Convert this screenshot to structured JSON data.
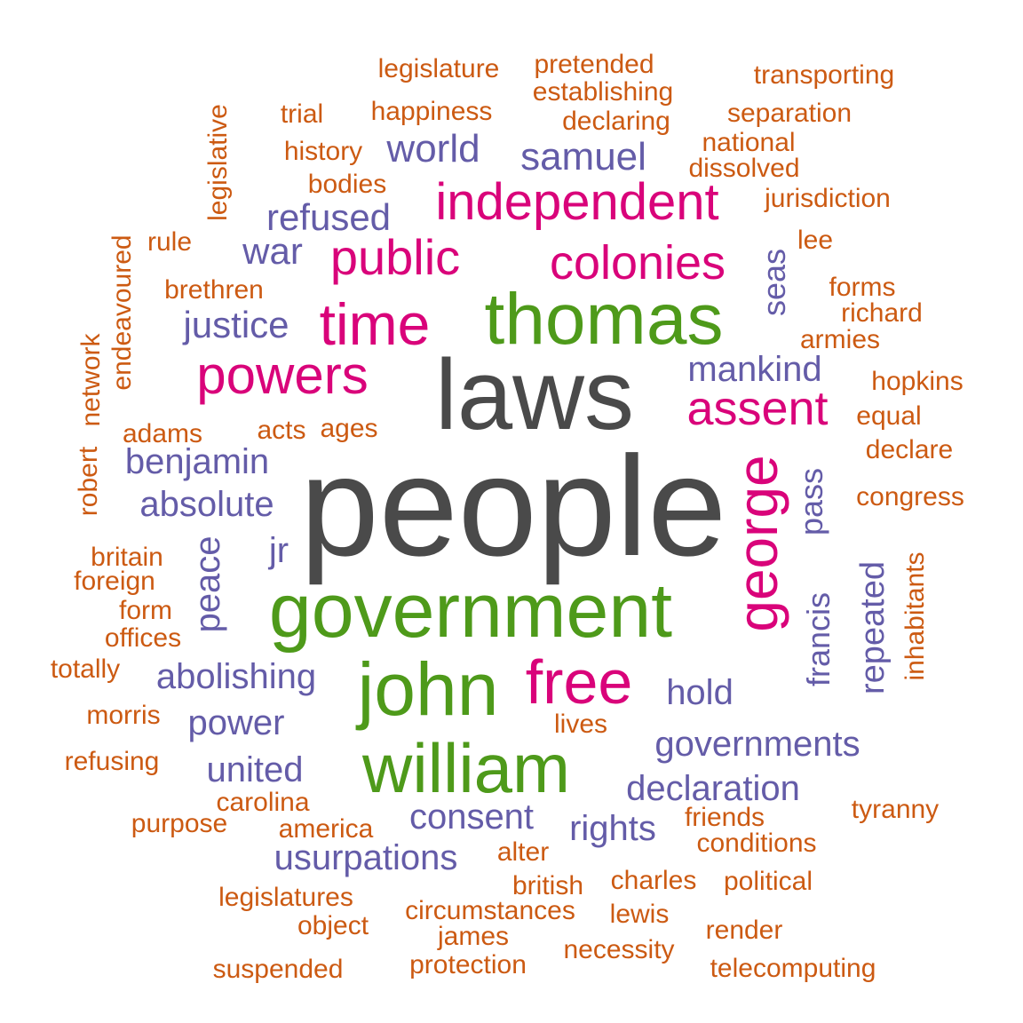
{
  "palette": {
    "orange": "#cc5a12",
    "purple": "#645ca8",
    "magenta": "#d9037a",
    "green": "#4e9a1a",
    "gray": "#4a4a4a"
  },
  "words": [
    {
      "text": "people",
      "color": "gray"
    },
    {
      "text": "laws",
      "color": "gray"
    },
    {
      "text": "government",
      "color": "green"
    },
    {
      "text": "thomas",
      "color": "green"
    },
    {
      "text": "john",
      "color": "green"
    },
    {
      "text": "william",
      "color": "green"
    },
    {
      "text": "free",
      "color": "magenta"
    },
    {
      "text": "time",
      "color": "magenta"
    },
    {
      "text": "powers",
      "color": "magenta"
    },
    {
      "text": "george",
      "color": "magenta"
    },
    {
      "text": "independent",
      "color": "magenta"
    },
    {
      "text": "colonies",
      "color": "magenta"
    },
    {
      "text": "public",
      "color": "magenta"
    },
    {
      "text": "assent",
      "color": "magenta"
    },
    {
      "text": "world",
      "color": "purple"
    },
    {
      "text": "samuel",
      "color": "purple"
    },
    {
      "text": "refused",
      "color": "purple"
    },
    {
      "text": "war",
      "color": "purple"
    },
    {
      "text": "justice",
      "color": "purple"
    },
    {
      "text": "mankind",
      "color": "purple"
    },
    {
      "text": "seas",
      "color": "purple"
    },
    {
      "text": "benjamin",
      "color": "purple"
    },
    {
      "text": "absolute",
      "color": "purple"
    },
    {
      "text": "jr",
      "color": "purple"
    },
    {
      "text": "peace",
      "color": "purple"
    },
    {
      "text": "pass",
      "color": "purple"
    },
    {
      "text": "francis",
      "color": "purple"
    },
    {
      "text": "repeated",
      "color": "purple"
    },
    {
      "text": "abolishing",
      "color": "purple"
    },
    {
      "text": "hold",
      "color": "purple"
    },
    {
      "text": "power",
      "color": "purple"
    },
    {
      "text": "governments",
      "color": "purple"
    },
    {
      "text": "united",
      "color": "purple"
    },
    {
      "text": "declaration",
      "color": "purple"
    },
    {
      "text": "consent",
      "color": "purple"
    },
    {
      "text": "rights",
      "color": "purple"
    },
    {
      "text": "usurpations",
      "color": "purple"
    },
    {
      "text": "legislature",
      "color": "orange"
    },
    {
      "text": "pretended",
      "color": "orange"
    },
    {
      "text": "transporting",
      "color": "orange"
    },
    {
      "text": "establishing",
      "color": "orange"
    },
    {
      "text": "legislative",
      "color": "orange"
    },
    {
      "text": "trial",
      "color": "orange"
    },
    {
      "text": "happiness",
      "color": "orange"
    },
    {
      "text": "declaring",
      "color": "orange"
    },
    {
      "text": "separation",
      "color": "orange"
    },
    {
      "text": "history",
      "color": "orange"
    },
    {
      "text": "national",
      "color": "orange"
    },
    {
      "text": "dissolved",
      "color": "orange"
    },
    {
      "text": "bodies",
      "color": "orange"
    },
    {
      "text": "jurisdiction",
      "color": "orange"
    },
    {
      "text": "endeavoured",
      "color": "orange"
    },
    {
      "text": "rule",
      "color": "orange"
    },
    {
      "text": "lee",
      "color": "orange"
    },
    {
      "text": "brethren",
      "color": "orange"
    },
    {
      "text": "forms",
      "color": "orange"
    },
    {
      "text": "richard",
      "color": "orange"
    },
    {
      "text": "network",
      "color": "orange"
    },
    {
      "text": "armies",
      "color": "orange"
    },
    {
      "text": "hopkins",
      "color": "orange"
    },
    {
      "text": "equal",
      "color": "orange"
    },
    {
      "text": "adams",
      "color": "orange"
    },
    {
      "text": "acts",
      "color": "orange"
    },
    {
      "text": "ages",
      "color": "orange"
    },
    {
      "text": "robert",
      "color": "orange"
    },
    {
      "text": "declare",
      "color": "orange"
    },
    {
      "text": "congress",
      "color": "orange"
    },
    {
      "text": "britain",
      "color": "orange"
    },
    {
      "text": "foreign",
      "color": "orange"
    },
    {
      "text": "inhabitants",
      "color": "orange"
    },
    {
      "text": "form",
      "color": "orange"
    },
    {
      "text": "offices",
      "color": "orange"
    },
    {
      "text": "totally",
      "color": "orange"
    },
    {
      "text": "morris",
      "color": "orange"
    },
    {
      "text": "lives",
      "color": "orange"
    },
    {
      "text": "refusing",
      "color": "orange"
    },
    {
      "text": "carolina",
      "color": "orange"
    },
    {
      "text": "tyranny",
      "color": "orange"
    },
    {
      "text": "purpose",
      "color": "orange"
    },
    {
      "text": "friends",
      "color": "orange"
    },
    {
      "text": "america",
      "color": "orange"
    },
    {
      "text": "conditions",
      "color": "orange"
    },
    {
      "text": "alter",
      "color": "orange"
    },
    {
      "text": "charles",
      "color": "orange"
    },
    {
      "text": "political",
      "color": "orange"
    },
    {
      "text": "british",
      "color": "orange"
    },
    {
      "text": "legislatures",
      "color": "orange"
    },
    {
      "text": "circumstances",
      "color": "orange"
    },
    {
      "text": "lewis",
      "color": "orange"
    },
    {
      "text": "object",
      "color": "orange"
    },
    {
      "text": "james",
      "color": "orange"
    },
    {
      "text": "render",
      "color": "orange"
    },
    {
      "text": "necessity",
      "color": "orange"
    },
    {
      "text": "suspended",
      "color": "orange"
    },
    {
      "text": "protection",
      "color": "orange"
    },
    {
      "text": "telecomputing",
      "color": "orange"
    }
  ]
}
